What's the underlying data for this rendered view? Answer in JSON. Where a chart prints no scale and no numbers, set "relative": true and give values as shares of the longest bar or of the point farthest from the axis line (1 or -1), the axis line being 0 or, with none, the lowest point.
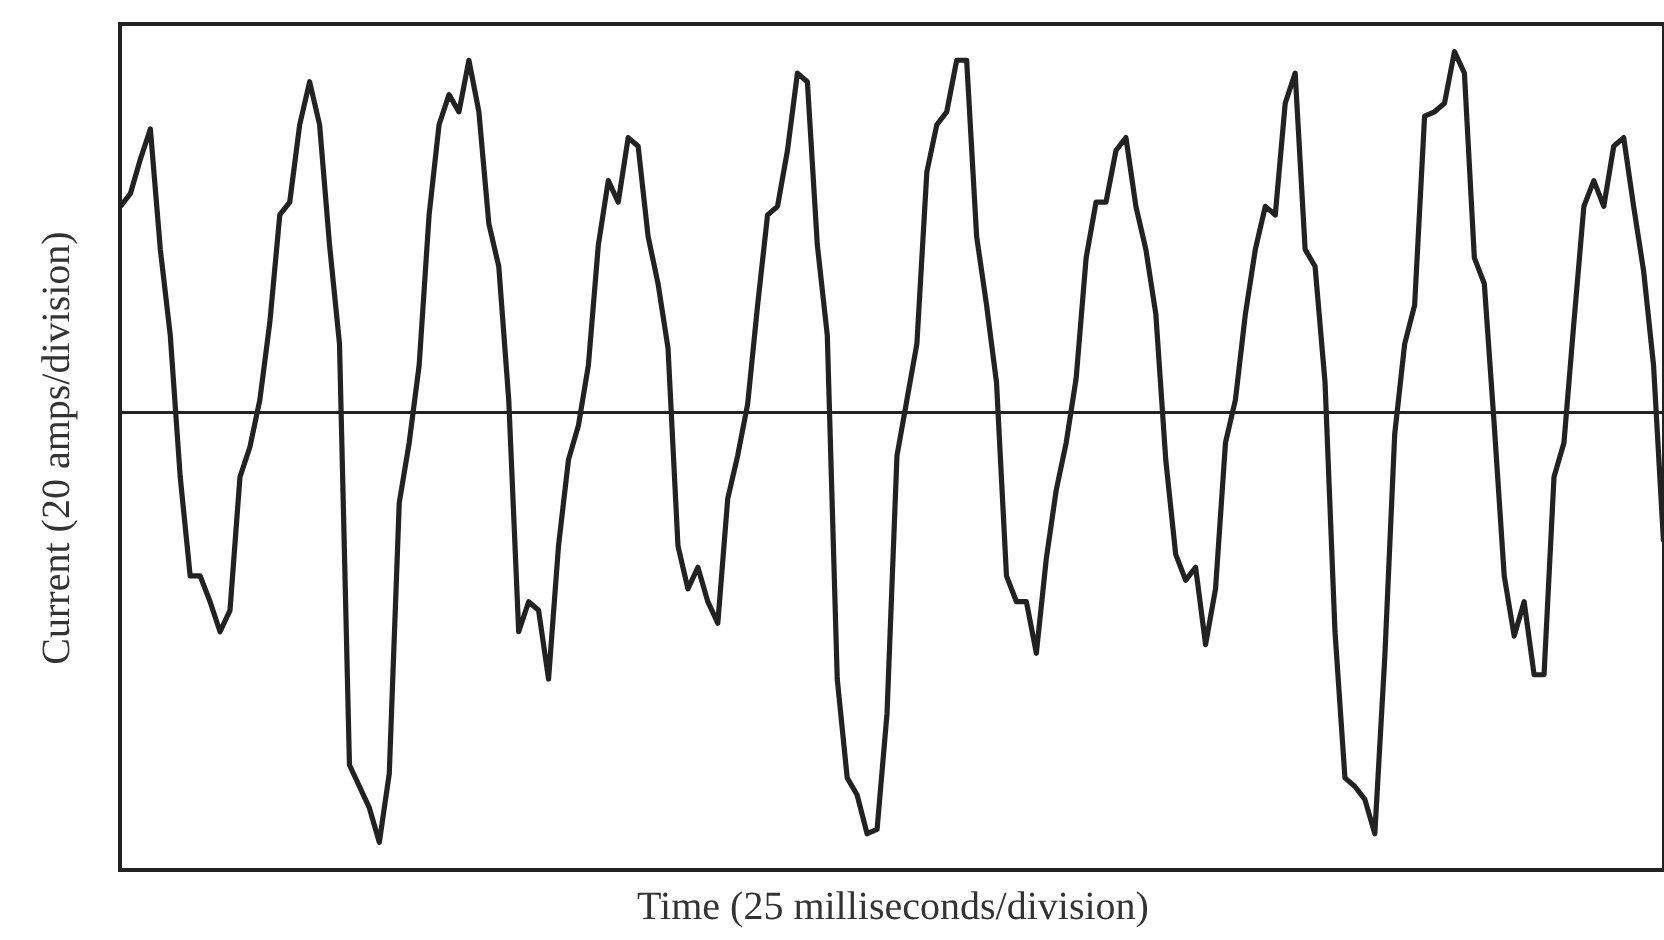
{
  "chart_data": {
    "type": "line",
    "xlabel": "Time (25 milliseconds/division)",
    "ylabel": "Current (20 amps/division)",
    "relative": true,
    "line_style": "solid",
    "categories": [
      null,
      null,
      null,
      null,
      null,
      null,
      null,
      null,
      null,
      null,
      null,
      null,
      null,
      null,
      null,
      null,
      null,
      null,
      null,
      null,
      null,
      null,
      null,
      null,
      null,
      null,
      null,
      null,
      null,
      null,
      null,
      null,
      null,
      null,
      null,
      null,
      null,
      null,
      null,
      null,
      null,
      null,
      null,
      null,
      null,
      null,
      null,
      null,
      null,
      null,
      null,
      null,
      null,
      null,
      null,
      null,
      null,
      null,
      null,
      null,
      null,
      null,
      null,
      null,
      null,
      null,
      null,
      null,
      null,
      null,
      null,
      null,
      null,
      null,
      null,
      null,
      null,
      null,
      null,
      null,
      null,
      null,
      null,
      null,
      null,
      null,
      null,
      null,
      null,
      null,
      null,
      null,
      null,
      null,
      null,
      null,
      null,
      null,
      null,
      null,
      null,
      null,
      null,
      null,
      null,
      null,
      null,
      null,
      null,
      null,
      null,
      null,
      null,
      null,
      null,
      null,
      null,
      null,
      null,
      null,
      null,
      null,
      null,
      null,
      null,
      null,
      null,
      null,
      null,
      null,
      null,
      null,
      null,
      null,
      null,
      null,
      null,
      null,
      null,
      null,
      null,
      null,
      null,
      null,
      null,
      null,
      null,
      null,
      null,
      null,
      null,
      null,
      null,
      null,
      null,
      null
    ],
    "series": [
      {
        "color": "#222222",
        "values": [
          0.48,
          0.51,
          0.59,
          0.66,
          0.38,
          0.18,
          -0.15,
          -0.38,
          -0.38,
          -0.44,
          -0.51,
          -0.46,
          -0.15,
          -0.08,
          0.03,
          0.21,
          0.46,
          0.49,
          0.67,
          0.77,
          0.67,
          0.39,
          0.16,
          -0.82,
          -0.87,
          -0.92,
          -1,
          -0.84,
          -0.21,
          -0.07,
          0.11,
          0.46,
          0.67,
          0.74,
          0.7,
          0.82,
          0.7,
          0.44,
          0.34,
          0.03,
          -0.51,
          -0.44,
          -0.46,
          -0.62,
          -0.31,
          -0.11,
          -0.03,
          0.11,
          0.39,
          0.54,
          0.49,
          0.64,
          0.62,
          0.41,
          0.3,
          0.15,
          -0.31,
          -0.41,
          -0.36,
          -0.44,
          -0.49,
          -0.2,
          -0.1,
          0.02,
          0.25,
          0.46,
          0.48,
          0.61,
          0.79,
          0.77,
          0.39,
          0.18,
          -0.62,
          -0.85,
          -0.89,
          -0.98,
          -0.97,
          -0.7,
          -0.1,
          0.03,
          0.16,
          0.56,
          0.67,
          0.7,
          0.82,
          0.82,
          0.41,
          0.25,
          0.07,
          -0.38,
          -0.44,
          -0.44,
          -0.56,
          -0.34,
          -0.18,
          -0.07,
          0.08,
          0.36,
          0.49,
          0.49,
          0.61,
          0.64,
          0.48,
          0.38,
          0.23,
          -0.11,
          -0.33,
          -0.39,
          -0.36,
          -0.54,
          -0.41,
          -0.07,
          0.03,
          0.23,
          0.38,
          0.48,
          0.46,
          0.72,
          0.79,
          0.38,
          0.34,
          0.07,
          -0.51,
          -0.85,
          -0.87,
          -0.9,
          -0.98,
          -0.57,
          -0.05,
          0.16,
          0.25,
          0.69,
          0.7,
          0.72,
          0.84,
          0.79,
          0.36,
          0.3,
          -0.03,
          -0.38,
          -0.52,
          -0.44,
          -0.61,
          -0.61,
          -0.15,
          -0.07,
          0.21,
          0.48,
          0.54,
          0.48,
          0.62,
          0.64,
          0.48,
          0.33,
          0.11,
          -0.3
        ]
      }
    ]
  }
}
